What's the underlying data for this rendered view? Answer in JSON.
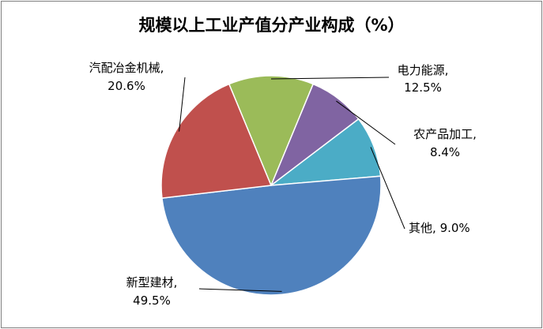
{
  "chart_data": {
    "type": "pie",
    "title": "规模以上工业产值分产业构成（%）",
    "slices": [
      {
        "name": "电力能源",
        "value": 12.5,
        "label": "12.5%",
        "color": "#9BBB59"
      },
      {
        "name": "农产品加工",
        "value": 8.4,
        "label": "8.4%",
        "color": "#8064A2"
      },
      {
        "name": "其他",
        "value": 9.0,
        "label": "9.0%",
        "color": "#4BACC6"
      },
      {
        "name": "新型建材",
        "value": 49.5,
        "label": "49.5%",
        "color": "#4F81BD"
      },
      {
        "name": "汽配冶金机械",
        "value": 20.6,
        "label": "20.6%",
        "color": "#C0504D"
      }
    ]
  }
}
